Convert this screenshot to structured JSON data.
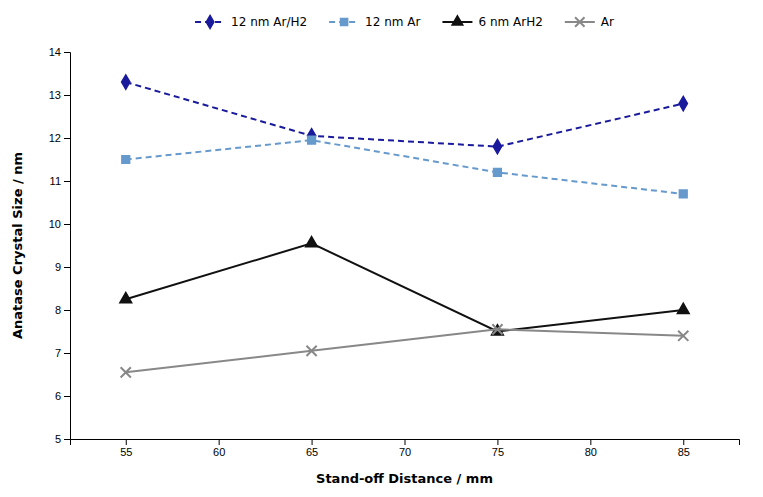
{
  "chart_data": {
    "type": "line",
    "x": [
      55,
      65,
      75,
      85
    ],
    "series": [
      {
        "name": "12 nm Ar/H2",
        "color": "#1a1a9c",
        "marker": "diamond",
        "line_style": "dashed",
        "values": [
          13.3,
          12.05,
          11.8,
          12.8
        ]
      },
      {
        "name": "12 nm Ar",
        "color": "#6699cc",
        "marker": "square",
        "line_style": "dashed",
        "values": [
          11.5,
          11.95,
          11.2,
          10.7
        ]
      },
      {
        "name": "6 nm ArH2",
        "color": "#111111",
        "marker": "triangle",
        "line_style": "solid",
        "values": [
          8.25,
          9.55,
          7.5,
          8.0
        ]
      },
      {
        "name": "Ar",
        "color": "#888888",
        "marker": "x",
        "line_style": "solid",
        "values": [
          6.55,
          7.05,
          7.55,
          7.4
        ]
      }
    ],
    "xlabel": "Stand-off Distance / mm",
    "ylabel": "Anatase Crystal Size / nm",
    "xlim": [
      52,
      88
    ],
    "ylim": [
      5,
      14
    ],
    "xticks": [
      55,
      60,
      65,
      70,
      75,
      80,
      85
    ],
    "yticks": [
      5,
      6,
      7,
      8,
      9,
      10,
      11,
      12,
      13,
      14
    ],
    "grid": false,
    "legend": "top"
  }
}
